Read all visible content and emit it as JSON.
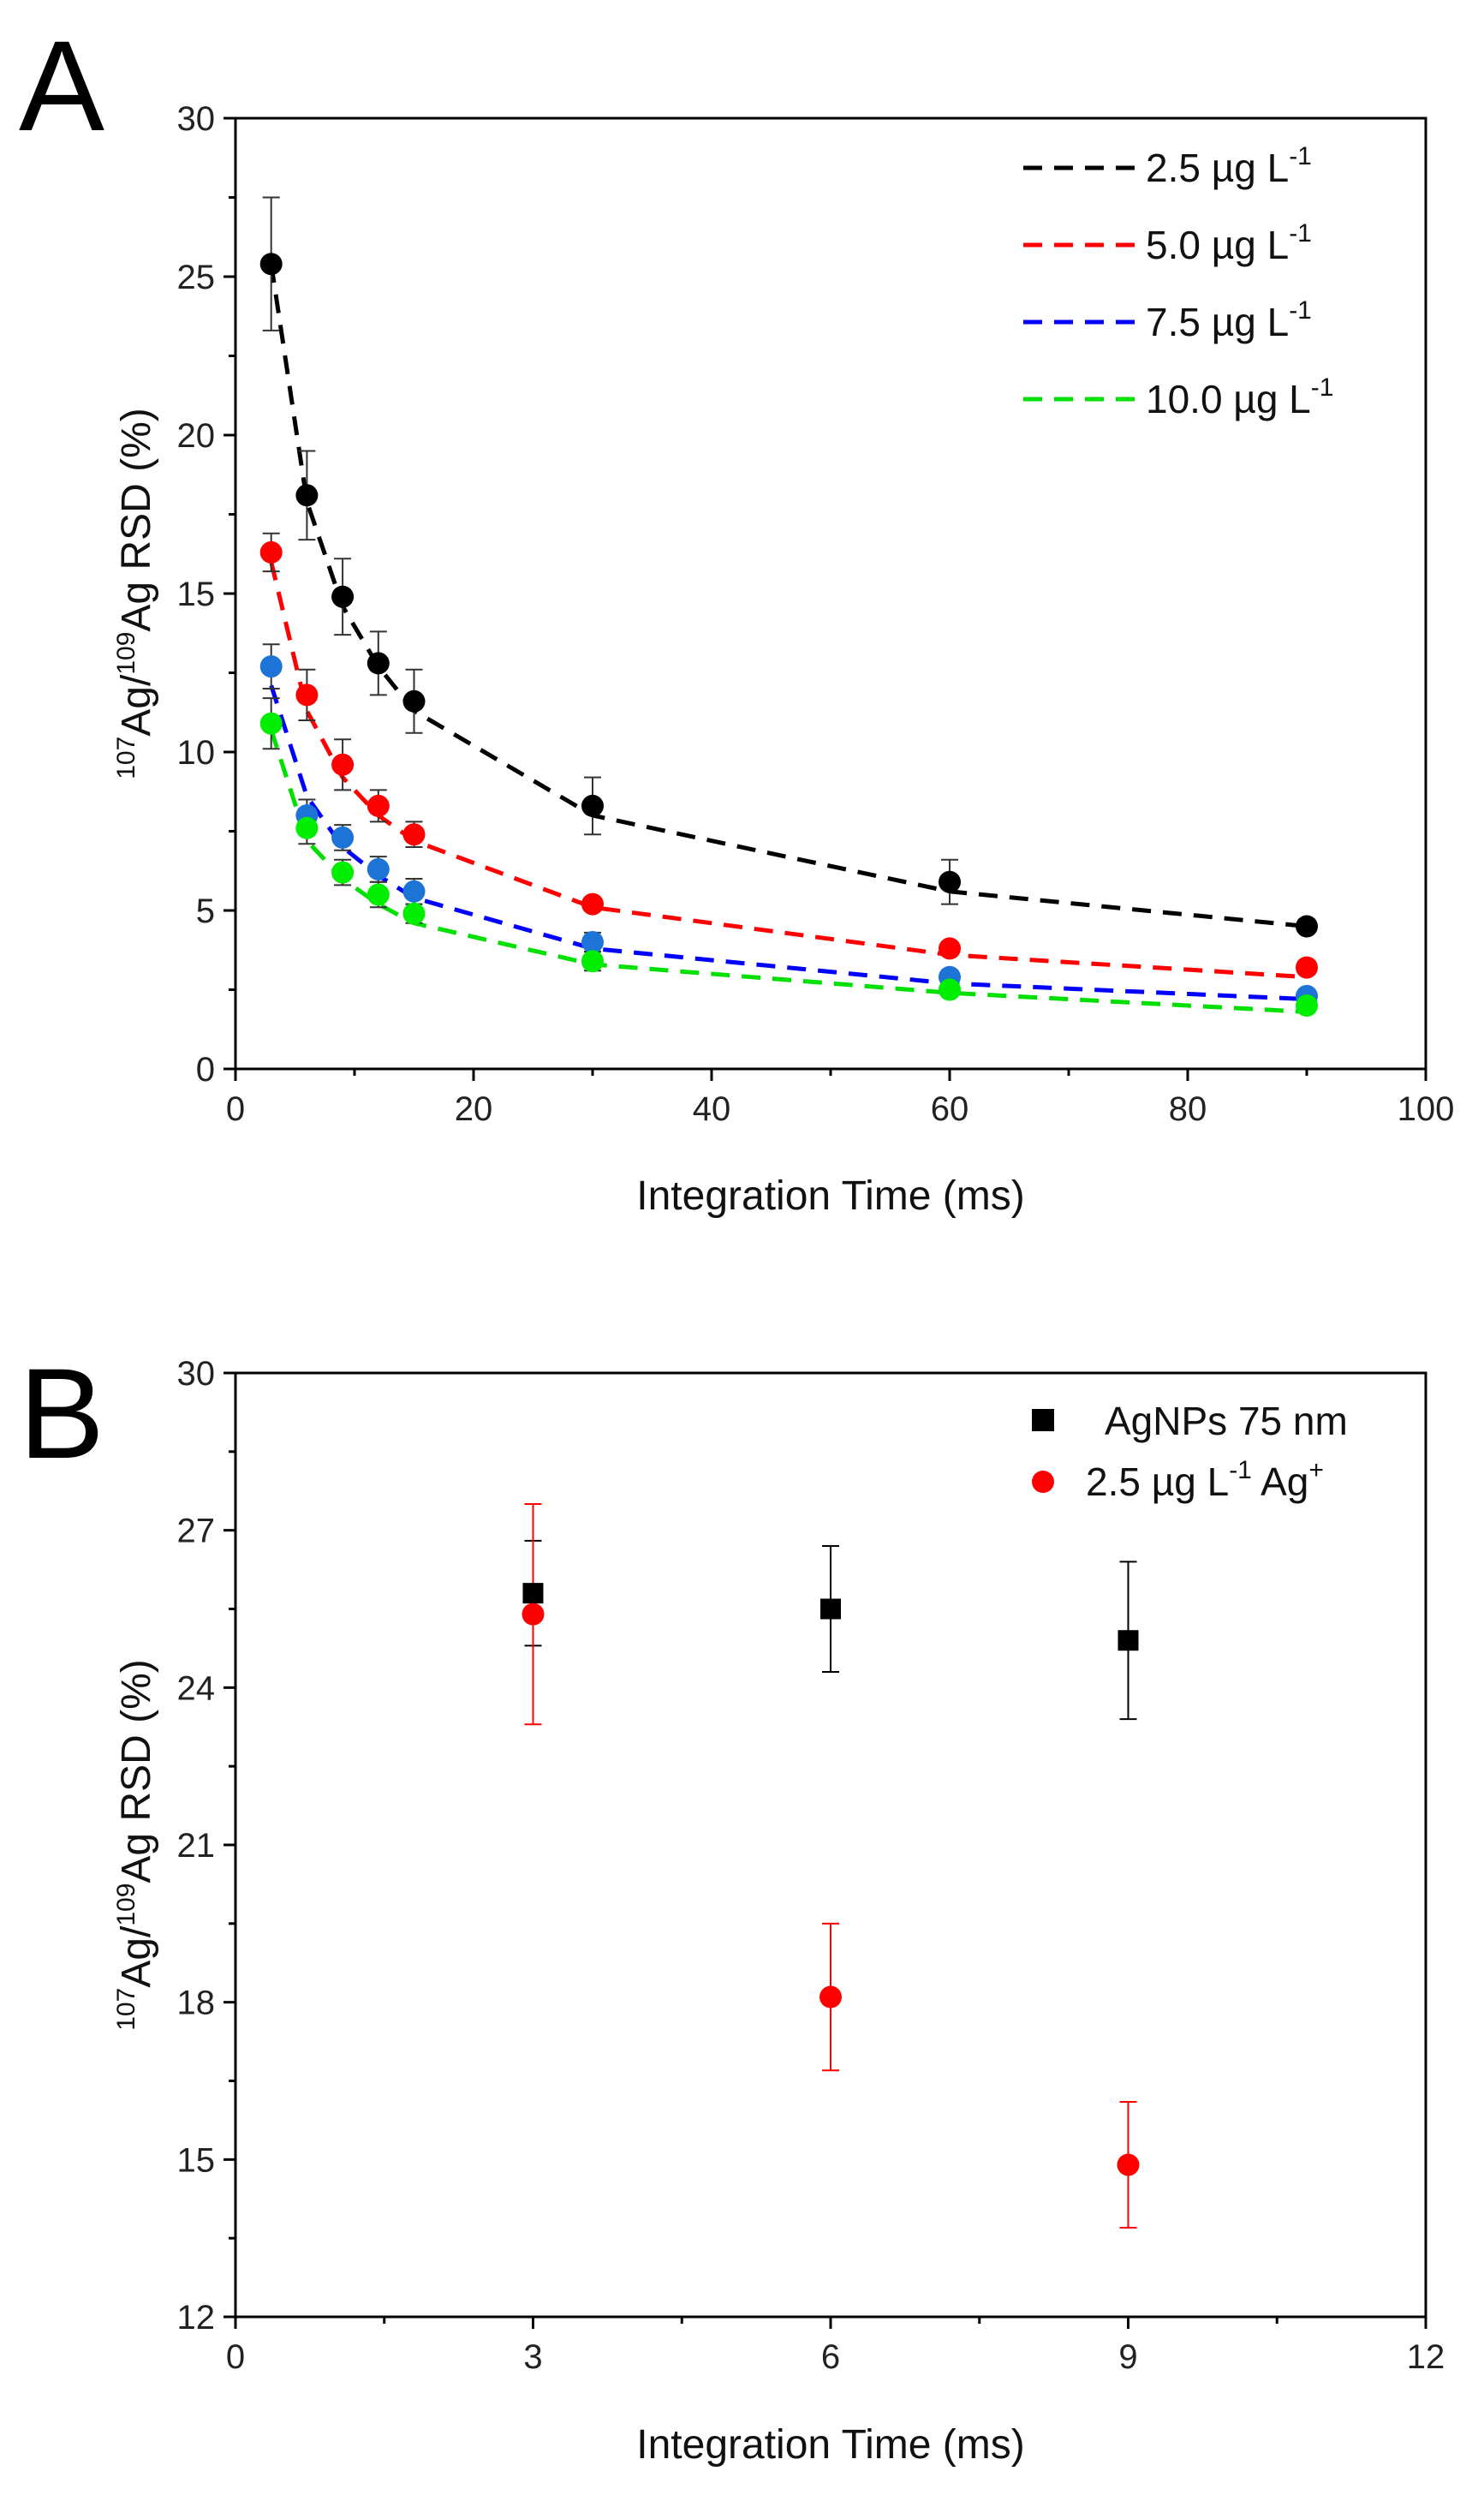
{
  "chart_data": [
    {
      "panel": "A",
      "type": "scatter",
      "xlabel": "Integration Time (ms)",
      "ylabel": {
        "sup1": "107",
        "part1": "Ag/",
        "sup2": "109",
        "part2": "Ag RSD (%)"
      },
      "xlim": [
        0,
        100
      ],
      "ylim": [
        0,
        30
      ],
      "xticks": [
        0,
        20,
        40,
        60,
        80,
        100
      ],
      "yticks": [
        0,
        5,
        10,
        15,
        20,
        25,
        30
      ],
      "legend_position": "top-right",
      "series": [
        {
          "name": "2.5 µg L⁻¹",
          "label_main": "2.5 µg L",
          "label_sup": "-1",
          "color": "#000000",
          "point_color": "#000000",
          "x": [
            3,
            6,
            9,
            12,
            15,
            30,
            60,
            90
          ],
          "y": [
            25.4,
            18.1,
            14.9,
            12.8,
            11.6,
            8.3,
            5.9,
            4.5
          ],
          "err": [
            2.1,
            1.4,
            1.2,
            1.0,
            1.0,
            0.9,
            0.7,
            0.2
          ],
          "fit": [
            25.4,
            17.9,
            14.6,
            12.7,
            11.3,
            8.0,
            5.6,
            4.5
          ]
        },
        {
          "name": "5.0 µg L⁻¹",
          "label_main": "5.0 µg L",
          "label_sup": "-1",
          "color": "#ff0000",
          "point_color": "#ff0000",
          "x": [
            3,
            6,
            9,
            12,
            15,
            30,
            60,
            90
          ],
          "y": [
            16.3,
            11.8,
            9.6,
            8.3,
            7.4,
            5.2,
            3.8,
            3.2
          ],
          "err": [
            0.6,
            0.8,
            0.8,
            0.5,
            0.4,
            0.2,
            0.2,
            0.2
          ],
          "fit": [
            16.0,
            11.3,
            9.2,
            8.0,
            7.2,
            5.1,
            3.6,
            2.9
          ]
        },
        {
          "name": "7.5 µg L⁻¹",
          "label_main": "7.5 µg L",
          "label_sup": "-1",
          "color": "#0000ff",
          "point_color": "#1e73d6",
          "x": [
            3,
            6,
            9,
            12,
            15,
            30,
            60,
            90
          ],
          "y": [
            12.7,
            8.0,
            7.3,
            6.3,
            5.6,
            4.0,
            2.9,
            2.3
          ],
          "err": [
            0.7,
            0.5,
            0.4,
            0.4,
            0.4,
            0.3,
            0.2,
            0.2
          ],
          "fit": [
            12.1,
            8.6,
            7.0,
            6.1,
            5.4,
            3.8,
            2.7,
            2.2
          ]
        },
        {
          "name": "10.0 µg L⁻¹",
          "label_main": "10.0 µg L",
          "label_sup": "-1",
          "color": "#00e000",
          "point_color": "#00ee00",
          "x": [
            3,
            6,
            9,
            12,
            15,
            30,
            60,
            90
          ],
          "y": [
            10.9,
            7.6,
            6.2,
            5.5,
            4.9,
            3.4,
            2.5,
            2.0
          ],
          "err": [
            0.8,
            0.5,
            0.4,
            0.4,
            0.3,
            0.3,
            0.2,
            0.2
          ],
          "fit": [
            10.7,
            7.2,
            6.0,
            5.2,
            4.6,
            3.3,
            2.4,
            1.8
          ]
        }
      ]
    },
    {
      "panel": "B",
      "type": "scatter",
      "xlabel": "Integration Time (ms)",
      "ylabel": {
        "sup1": "107",
        "part1": "Ag/",
        "sup2": "109",
        "part2": "Ag RSD (%)"
      },
      "xlim": [
        0,
        12
      ],
      "ylim": [
        12,
        30
      ],
      "xticks": [
        0,
        3,
        6,
        9,
        12
      ],
      "yticks": [
        12,
        15,
        18,
        21,
        24,
        27,
        30
      ],
      "legend_position": "top-right",
      "series": [
        {
          "name": "AgNPs 75 nm",
          "label_main": "AgNPs 75 nm",
          "label_sup": "",
          "marker": "square",
          "color": "#000000",
          "x": [
            3,
            6,
            9
          ],
          "y": [
            25.8,
            25.5,
            24.9
          ],
          "err": [
            1.0,
            1.2,
            1.5
          ]
        },
        {
          "name": "2.5 µg L⁻¹ Ag⁺",
          "label_main": "2.5 µg L",
          "label_sup": "-1",
          "label_tail": " Ag",
          "label_tail_sup": "+",
          "marker": "circle",
          "color": "#ff0000",
          "x": [
            3,
            6,
            9
          ],
          "y": [
            25.4,
            18.1,
            14.9
          ],
          "err": [
            2.1,
            1.4,
            1.2
          ]
        }
      ]
    }
  ]
}
